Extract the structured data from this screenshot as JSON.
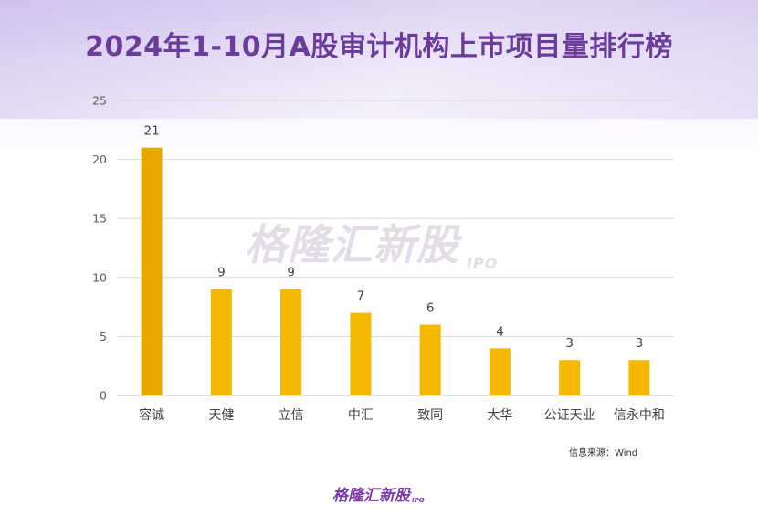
{
  "title": "2024年1-10月A股审计机构上市项目量排行榜",
  "watermark": {
    "text": "格隆汇新股",
    "sub": "IPO"
  },
  "source": "信息来源：Wind",
  "footer_logo": {
    "text": "格隆汇新股",
    "sub": "IPO"
  },
  "colors": {
    "bar_primary": "#f5b800",
    "bar_first": "#e8a800",
    "title": "#6b3c9c"
  },
  "chart_data": {
    "type": "bar",
    "categories": [
      "容诚",
      "天健",
      "立信",
      "中汇",
      "致同",
      "大华",
      "公证天业",
      "信永中和"
    ],
    "values": [
      21,
      9,
      9,
      7,
      6,
      4,
      3,
      3
    ],
    "ylim": [
      0,
      25
    ],
    "yticks": [
      0,
      5,
      10,
      15,
      20,
      25
    ],
    "grid": true,
    "data_labels": true
  }
}
